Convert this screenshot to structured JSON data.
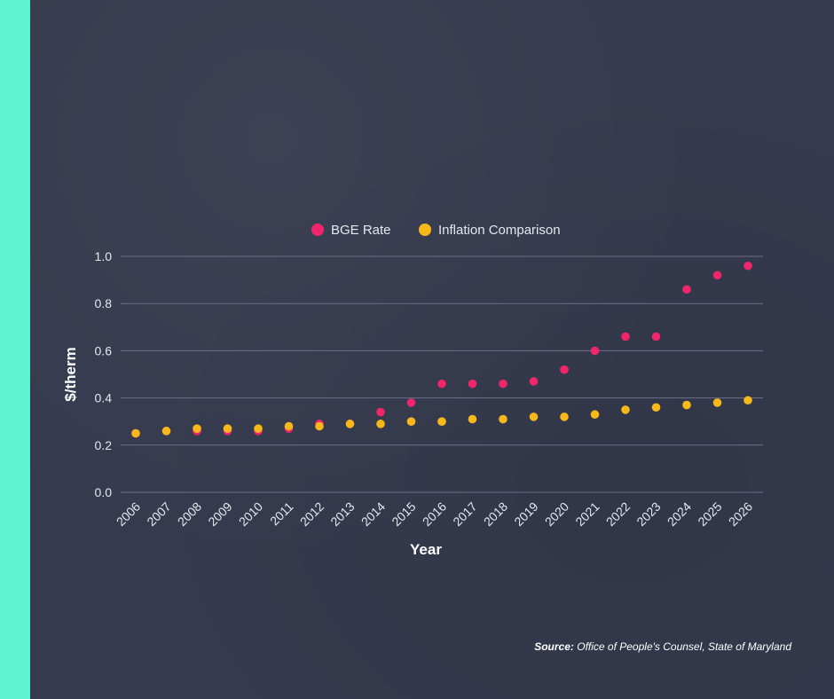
{
  "colors": {
    "accent": "#5ef2cf",
    "bge": "#f0256a",
    "inflation": "#f9b81a",
    "grid": "#6b7088"
  },
  "source": {
    "label": "Source:",
    "text": "Office of People's Counsel, State of Maryland"
  },
  "chart_data": {
    "type": "scatter",
    "title": "",
    "xlabel": "Year",
    "ylabel": "$/therm",
    "ylim": [
      0,
      1.0
    ],
    "yticks": [
      "0.0",
      "0.2",
      "0.4",
      "0.6",
      "0.8",
      "1.0"
    ],
    "legend_position": "top-center",
    "grid": true,
    "categories": [
      "2006",
      "2007",
      "2008",
      "2009",
      "2010",
      "2011",
      "2012",
      "2013",
      "2014",
      "2015",
      "2016",
      "2017",
      "2018",
      "2019",
      "2020",
      "2021",
      "2022",
      "2023",
      "2024",
      "2025",
      "2026"
    ],
    "series": [
      {
        "name": "BGE Rate",
        "color": "#f0256a",
        "values": [
          0.25,
          0.26,
          0.26,
          0.26,
          0.26,
          0.27,
          0.29,
          0.29,
          0.34,
          0.38,
          0.46,
          0.46,
          0.46,
          0.47,
          0.52,
          0.6,
          0.66,
          0.66,
          0.86,
          0.92,
          0.96
        ]
      },
      {
        "name": "Inflation Comparison",
        "color": "#f9b81a",
        "values": [
          0.25,
          0.26,
          0.27,
          0.27,
          0.27,
          0.28,
          0.28,
          0.29,
          0.29,
          0.3,
          0.3,
          0.31,
          0.31,
          0.32,
          0.32,
          0.33,
          0.35,
          0.36,
          0.37,
          0.38,
          0.39
        ]
      }
    ]
  }
}
